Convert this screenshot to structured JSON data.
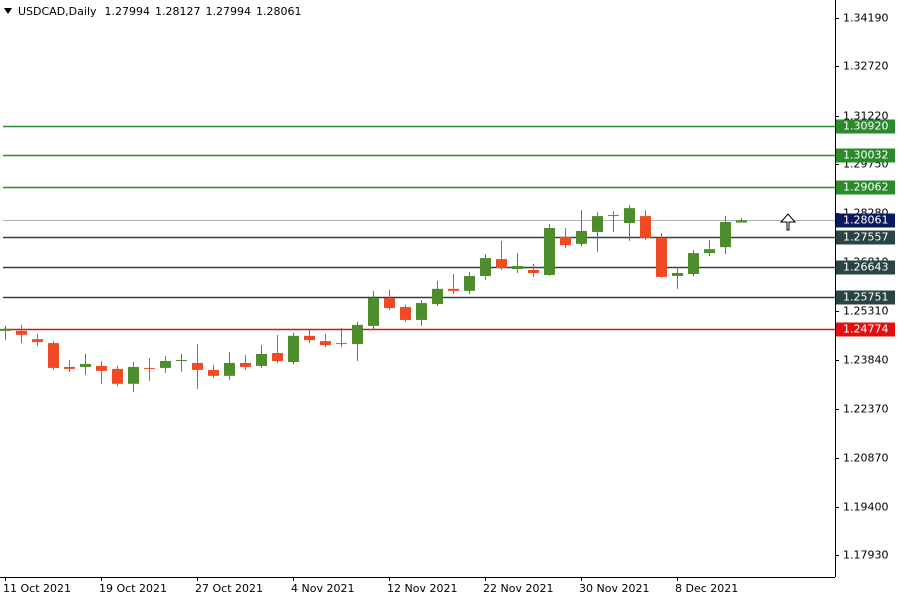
{
  "chart_data": {
    "type": "candlestick",
    "title": "USDCAD,Daily",
    "categories": [
      "11 Oct 2021",
      null,
      null,
      null,
      null,
      null,
      "19 Oct 2021",
      null,
      null,
      null,
      null,
      null,
      "27 Oct 2021",
      null,
      null,
      null,
      null,
      null,
      "4 Nov 2021",
      null,
      null,
      null,
      null,
      null,
      "12 Nov 2021",
      null,
      null,
      null,
      null,
      null,
      "22 Nov 2021",
      null,
      null,
      null,
      null,
      null,
      "30 Nov 2021",
      null,
      null,
      null,
      null,
      null,
      "8 Dec 2021",
      null,
      null,
      null,
      null
    ],
    "open": [
      1.2472,
      1.2472,
      1.2447,
      1.2435,
      1.2363,
      1.2363,
      1.2366,
      1.2357,
      1.2312,
      1.236,
      1.236,
      1.2381,
      1.2375,
      1.2354,
      1.2336,
      1.2375,
      1.2366,
      1.2405,
      1.2378,
      1.2457,
      1.2441,
      1.2435,
      1.2432,
      1.2487,
      1.2571,
      1.2544,
      1.2505,
      1.2553,
      1.2599,
      1.2593,
      1.2638,
      1.2689,
      1.2659,
      1.2656,
      1.2641,
      1.2756,
      1.2735,
      1.2771,
      1.2819,
      1.2798,
      1.2819,
      1.2753,
      1.2638,
      1.2644,
      1.2707,
      1.2725,
      1.27994
    ],
    "high": [
      1.2487,
      1.249,
      1.2463,
      1.2441,
      1.2384,
      1.2402,
      1.2381,
      1.2366,
      1.2378,
      1.239,
      1.2396,
      1.2402,
      1.2432,
      1.2369,
      1.2408,
      1.2399,
      1.2429,
      1.246,
      1.2466,
      1.2475,
      1.2463,
      1.2481,
      1.2499,
      1.2593,
      1.2596,
      1.255,
      1.2565,
      1.2623,
      1.2644,
      1.265,
      1.2704,
      1.2744,
      1.2707,
      1.2674,
      1.2795,
      1.2783,
      1.2837,
      1.2831,
      1.2834,
      1.2852,
      1.2837,
      1.2768,
      1.2665,
      1.2716,
      1.2747,
      1.2819,
      1.28127
    ],
    "low": [
      1.2444,
      1.2435,
      1.2426,
      1.2354,
      1.2348,
      1.2339,
      1.2312,
      1.2305,
      1.2287,
      1.2321,
      1.2345,
      1.2348,
      1.2296,
      1.233,
      1.2324,
      1.2354,
      1.236,
      1.2375,
      1.2372,
      1.2435,
      1.2423,
      1.2423,
      1.2381,
      1.2475,
      1.2535,
      1.2499,
      1.2487,
      1.2547,
      1.2583,
      1.2583,
      1.2626,
      1.2656,
      1.2647,
      1.2635,
      1.2638,
      1.2722,
      1.2728,
      1.271,
      1.2771,
      1.2744,
      1.2747,
      1.2632,
      1.2599,
      1.2638,
      1.2698,
      1.2704,
      1.27994
    ],
    "close": [
      1.2478,
      1.246,
      1.2438,
      1.236,
      1.2357,
      1.2372,
      1.2351,
      1.2312,
      1.2363,
      1.2357,
      1.2381,
      1.2384,
      1.2354,
      1.2336,
      1.2375,
      1.2363,
      1.2402,
      1.2381,
      1.2457,
      1.2444,
      1.2429,
      1.2432,
      1.249,
      1.2571,
      1.2541,
      1.2505,
      1.2556,
      1.2599,
      1.2593,
      1.2638,
      1.2692,
      1.2662,
      1.2668,
      1.2647,
      1.2783,
      1.2731,
      1.2774,
      1.2819,
      1.2822,
      1.2843,
      1.2753,
      1.2635,
      1.2647,
      1.2707,
      1.2719,
      1.2801,
      1.28061
    ],
    "up_color": "#4f8c2c",
    "down_color": "#f04a24",
    "ylim": [
      1.1728,
      1.3457
    ],
    "yticks": [
      {
        "value": 1.3419,
        "label": "1.34190"
      },
      {
        "value": 1.3272,
        "label": "1.32720"
      },
      {
        "value": 1.3122,
        "label": "1.31220"
      },
      {
        "value": 1.2975,
        "label": "1.29750"
      },
      {
        "value": 1.2828,
        "label": "1.28280"
      },
      {
        "value": 1.2681,
        "label": "1.26810"
      },
      {
        "value": 1.2531,
        "label": "1.25310"
      },
      {
        "value": 1.2384,
        "label": "1.23840"
      },
      {
        "value": 1.2237,
        "label": "1.22370"
      },
      {
        "value": 1.2087,
        "label": "1.20870"
      },
      {
        "value": 1.194,
        "label": "1.19400"
      },
      {
        "value": 1.1793,
        "label": "1.17930"
      }
    ],
    "levels": [
      {
        "value": {
          "value": 1.3092,
          "label": "1.30920"
        },
        "color": "#2b8a2b"
      },
      {
        "value": 1.30032,
        "color": "#2b8a2b"
      },
      {
        "value": 1.29062,
        "color": "#2b8a2b"
      },
      {
        "value": 1.28061,
        "color": "#0b1a5c",
        "line_color": "#a9b2bb"
      },
      {
        "value": 1.27557,
        "color": "#2a4446"
      },
      {
        "value": 1.26643,
        "color": "#2a4446"
      },
      {
        "value": 1.25751,
        "color": "#2a4446"
      },
      {
        "value": 1.24774,
        "color": "#e01010"
      }
    ]
  }
}
